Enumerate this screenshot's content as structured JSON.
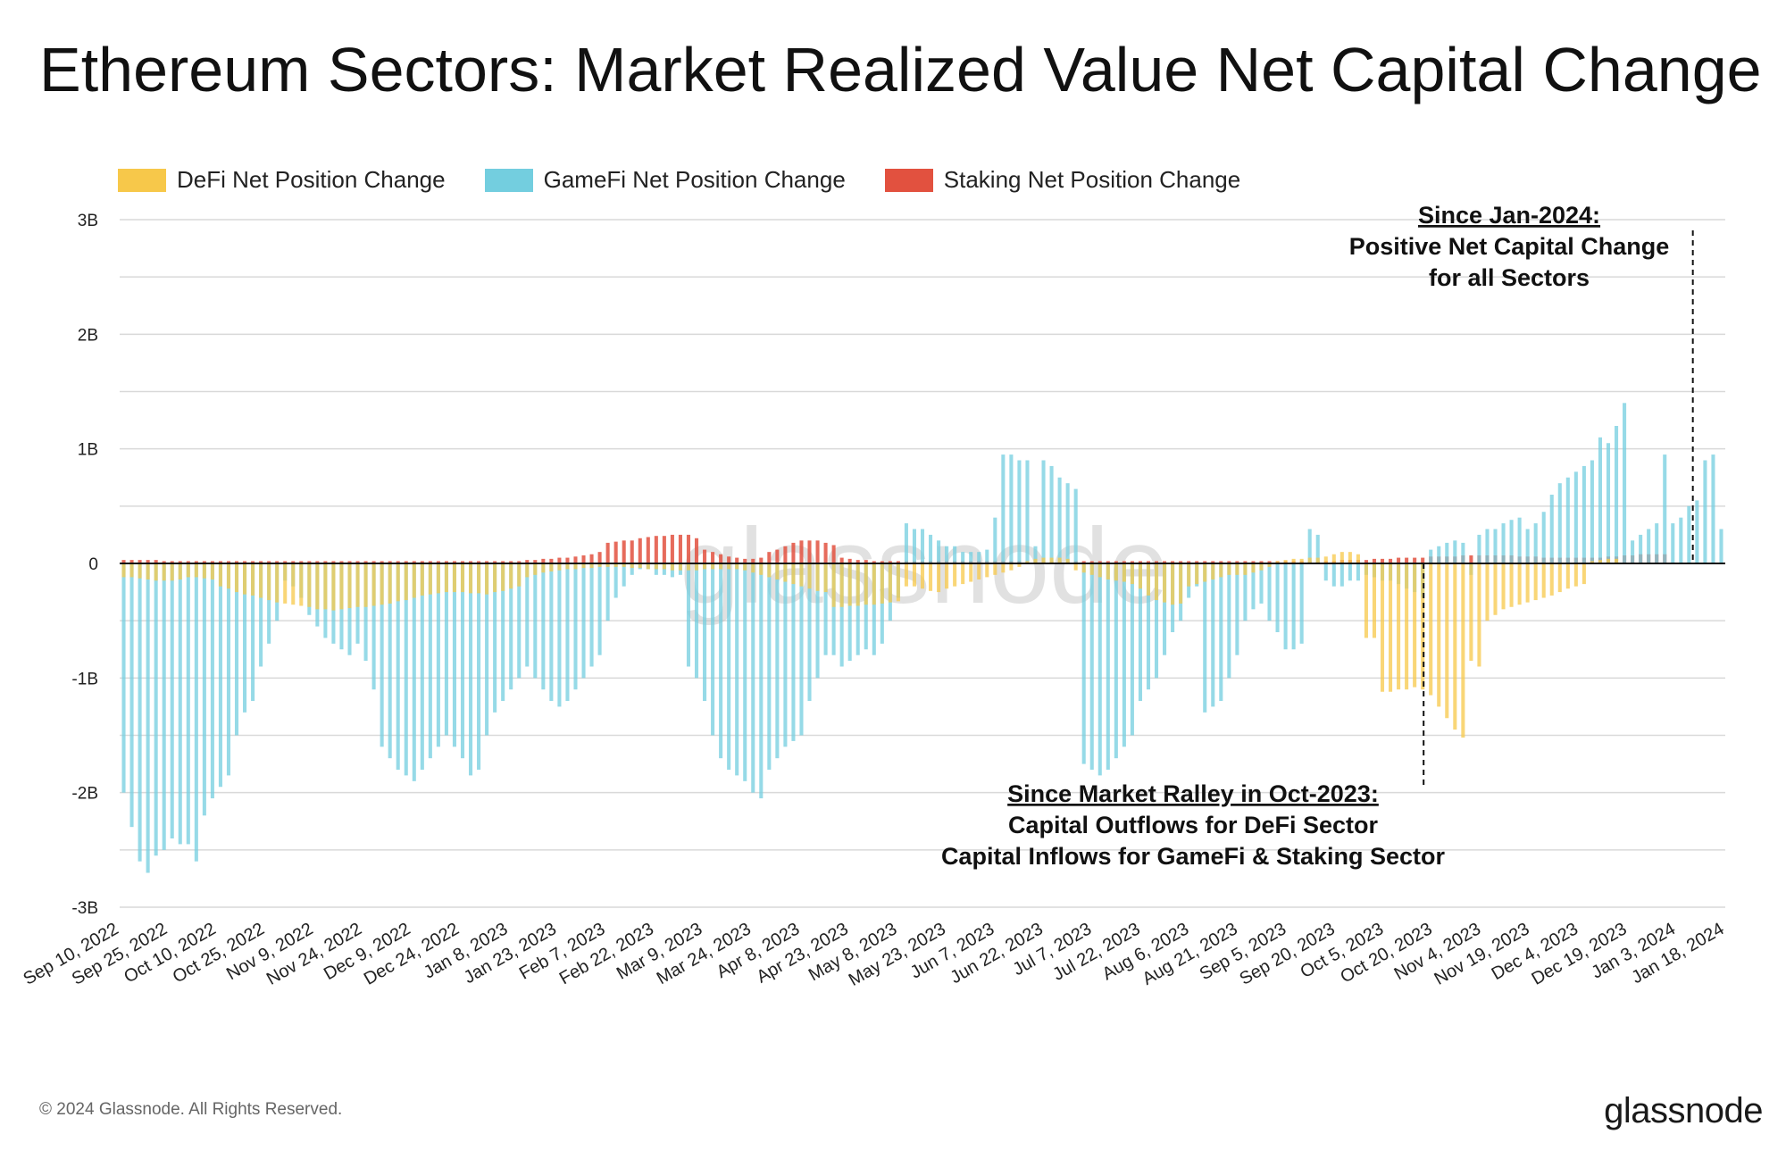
{
  "title": "Ethereum Sectors: Market Realized Value Net Capital Change",
  "legend": [
    {
      "label": "DeFi Net Position Change",
      "color": "#F7C84A"
    },
    {
      "label": "GameFi Net Position Change",
      "color": "#73CEDF"
    },
    {
      "label": "Staking Net Position Change",
      "color": "#E2513F"
    }
  ],
  "watermark": "glassnode",
  "footer": {
    "copyright": "© 2024 Glassnode. All Rights Reserved.",
    "logo": "glassnode"
  },
  "annotations": [
    {
      "lines": [
        "Since Jan-2024:",
        "Positive Net Capital Change",
        "for all Sectors"
      ],
      "anchor_date": "Jan 8, 2024"
    },
    {
      "lines": [
        "Since Market Ralley in Oct-2023:",
        "Capital Outflows for DeFi Sector",
        "Capital Inflows for GameFi & Staking Sector"
      ],
      "anchor_date": "Oct 17, 2023"
    }
  ],
  "chart_data": {
    "type": "bar",
    "title": "Ethereum Sectors: Market Realized Value Net Capital Change",
    "x_range": [
      "Sep 10, 2022",
      "Jan 18, 2024"
    ],
    "x_tick_labels": [
      "Sep 10, 2022",
      "Sep 25, 2022",
      "Oct 10, 2022",
      "Oct 25, 2022",
      "Nov 9, 2022",
      "Nov 24, 2022",
      "Dec 9, 2022",
      "Dec 24, 2022",
      "Jan 8, 2023",
      "Jan 23, 2023",
      "Feb 7, 2023",
      "Feb 22, 2023",
      "Mar 9, 2023",
      "Mar 24, 2023",
      "Apr 8, 2023",
      "Apr 23, 2023",
      "May 8, 2023",
      "May 23, 2023",
      "Jun 7, 2023",
      "Jun 22, 2023",
      "Jul 7, 2023",
      "Jul 22, 2023",
      "Aug 6, 2023",
      "Aug 21, 2023",
      "Sep 5, 2023",
      "Sep 20, 2023",
      "Oct 5, 2023",
      "Oct 20, 2023",
      "Nov 4, 2023",
      "Nov 19, 2023",
      "Dec 4, 2023",
      "Dec 19, 2023",
      "Jan 3, 2024",
      "Jan 18, 2024"
    ],
    "y_ticks": [
      3000000000,
      2000000000,
      1000000000,
      0,
      -1000000000,
      -2000000000,
      -3000000000
    ],
    "y_tick_labels": [
      "3B",
      "2B",
      "1B",
      "0",
      "-1B",
      "-2B",
      "-3B"
    ],
    "ylim": [
      -3000000000,
      3000000000
    ],
    "grid": true,
    "legend_position": "top-left",
    "series_sampling": "values sampled every 3 days from Sep 10, 2022",
    "series": [
      {
        "name": "DeFi Net Position Change",
        "color": "#F7C84A",
        "values": [
          -0.12,
          -0.12,
          -0.13,
          -0.14,
          -0.15,
          -0.15,
          -0.15,
          -0.14,
          -0.12,
          -0.12,
          -0.13,
          -0.14,
          -0.2,
          -0.22,
          -0.25,
          -0.27,
          -0.28,
          -0.3,
          -0.32,
          -0.34,
          -0.35,
          -0.36,
          -0.37,
          -0.38,
          -0.4,
          -0.4,
          -0.41,
          -0.4,
          -0.39,
          -0.38,
          -0.38,
          -0.37,
          -0.36,
          -0.35,
          -0.33,
          -0.32,
          -0.3,
          -0.28,
          -0.27,
          -0.26,
          -0.25,
          -0.25,
          -0.25,
          -0.26,
          -0.26,
          -0.27,
          -0.25,
          -0.24,
          -0.22,
          -0.2,
          -0.12,
          -0.1,
          -0.08,
          -0.07,
          -0.06,
          -0.05,
          -0.05,
          -0.04,
          -0.04,
          -0.03,
          -0.03,
          -0.03,
          -0.03,
          -0.04,
          -0.04,
          -0.05,
          -0.05,
          -0.05,
          -0.06,
          -0.06,
          -0.06,
          -0.06,
          -0.05,
          -0.05,
          -0.05,
          -0.05,
          -0.05,
          -0.06,
          -0.08,
          -0.1,
          -0.12,
          -0.14,
          -0.16,
          -0.18,
          -0.2,
          -0.22,
          -0.24,
          -0.25,
          -0.38,
          -0.38,
          -0.37,
          -0.37,
          -0.36,
          -0.36,
          -0.35,
          -0.34,
          -0.33,
          -0.2,
          -0.2,
          -0.22,
          -0.24,
          -0.25,
          -0.22,
          -0.2,
          -0.18,
          -0.16,
          -0.14,
          -0.12,
          -0.1,
          -0.08,
          -0.06,
          -0.03,
          0.02,
          0.04,
          0.05,
          0.05,
          0.05,
          0.04,
          -0.06,
          -0.08,
          -0.1,
          -0.12,
          -0.14,
          -0.15,
          -0.16,
          -0.18,
          -0.22,
          -0.28,
          -0.32,
          -0.34,
          -0.36,
          -0.35,
          -0.2,
          -0.18,
          -0.16,
          -0.14,
          -0.12,
          -0.1,
          -0.1,
          -0.1,
          -0.08,
          -0.06,
          -0.03,
          0.02,
          0.03,
          0.04,
          0.04,
          0.05,
          0.05,
          0.06,
          0.08,
          0.1,
          0.1,
          0.08,
          -0.65,
          -0.65,
          -1.12,
          -1.12,
          -1.1,
          -1.1,
          -1.08,
          -1.1,
          -1.15,
          -1.25,
          -1.35,
          -1.45,
          -1.52,
          -0.85,
          -0.9,
          -0.5,
          -0.45,
          -0.4,
          -0.38,
          -0.36,
          -0.34,
          -0.32,
          -0.3,
          -0.28,
          -0.25,
          -0.22,
          -0.2,
          -0.18,
          0.02,
          0.03,
          0.04,
          0.04
        ]
      },
      {
        "name": "GameFi Net Position Change",
        "color": "#73CEDF",
        "values": [
          -2.0,
          -2.3,
          -2.6,
          -2.7,
          -2.55,
          -2.5,
          -2.4,
          -2.45,
          -2.45,
          -2.6,
          -2.2,
          -2.05,
          -1.95,
          -1.85,
          -1.5,
          -1.3,
          -1.2,
          -0.9,
          -0.7,
          -0.5,
          -0.15,
          -0.2,
          -0.3,
          -0.45,
          -0.55,
          -0.65,
          -0.7,
          -0.75,
          -0.8,
          -0.7,
          -0.85,
          -1.1,
          -1.6,
          -1.7,
          -1.8,
          -1.85,
          -1.9,
          -1.8,
          -1.7,
          -1.6,
          -1.5,
          -1.6,
          -1.7,
          -1.85,
          -1.8,
          -1.5,
          -1.3,
          -1.2,
          -1.1,
          -1.0,
          -0.9,
          -1.0,
          -1.1,
          -1.2,
          -1.25,
          -1.2,
          -1.1,
          -1.0,
          -0.9,
          -0.8,
          -0.5,
          -0.3,
          -0.2,
          -0.1,
          -0.05,
          -0.05,
          -0.1,
          -0.1,
          -0.12,
          -0.1,
          -0.9,
          -1.0,
          -1.2,
          -1.5,
          -1.7,
          -1.8,
          -1.85,
          -1.9,
          -2.0,
          -2.05,
          -1.8,
          -1.7,
          -1.6,
          -1.55,
          -1.5,
          -1.2,
          -1.0,
          -0.8,
          -0.8,
          -0.9,
          -0.85,
          -0.8,
          -0.75,
          -0.8,
          -0.7,
          -0.5,
          -0.3,
          0.35,
          0.3,
          0.3,
          0.25,
          0.2,
          0.15,
          0.15,
          0.1,
          0.1,
          0.1,
          0.12,
          0.4,
          0.95,
          0.95,
          0.9,
          0.9,
          0.15,
          0.9,
          0.85,
          0.75,
          0.7,
          0.65,
          -1.75,
          -1.8,
          -1.85,
          -1.8,
          -1.7,
          -1.6,
          -1.5,
          -1.2,
          -1.1,
          -1.0,
          -0.8,
          -0.6,
          -0.5,
          -0.3,
          -0.2,
          -1.3,
          -1.25,
          -1.2,
          -1.0,
          -0.8,
          -0.5,
          -0.4,
          -0.35,
          -0.5,
          -0.6,
          -0.75,
          -0.75,
          -0.7,
          0.3,
          0.25,
          -0.15,
          -0.2,
          -0.2,
          -0.15,
          -0.15,
          -0.1,
          -0.12,
          -0.15,
          -0.15,
          -0.18,
          -0.22,
          -0.25,
          -0.3,
          0.12,
          0.15,
          0.18,
          0.2,
          0.18,
          -0.1,
          0.25,
          0.3,
          0.3,
          0.35,
          0.38,
          0.4,
          0.3,
          0.35,
          0.45,
          0.6,
          0.7,
          0.75,
          0.8,
          0.85,
          0.9,
          1.1,
          1.05,
          1.2,
          1.4,
          0.2,
          0.25,
          0.3,
          0.35,
          0.95,
          0.35,
          0.4,
          0.5,
          0.55,
          0.9,
          0.95,
          0.3
        ]
      },
      {
        "name": "Staking Net Position Change",
        "color": "#E2513F",
        "values": [
          0.03,
          0.03,
          0.03,
          0.03,
          0.03,
          0.02,
          0.02,
          0.02,
          0.02,
          0.02,
          0.02,
          0.02,
          0.02,
          0.02,
          0.02,
          0.02,
          0.02,
          0.02,
          0.02,
          0.02,
          0.02,
          0.02,
          0.02,
          0.02,
          0.02,
          0.02,
          0.02,
          0.02,
          0.02,
          0.02,
          0.02,
          0.02,
          0.02,
          0.02,
          0.02,
          0.02,
          0.02,
          0.02,
          0.02,
          0.02,
          0.02,
          0.02,
          0.02,
          0.02,
          0.02,
          0.02,
          0.02,
          0.02,
          0.02,
          0.02,
          0.03,
          0.03,
          0.04,
          0.04,
          0.05,
          0.05,
          0.06,
          0.07,
          0.08,
          0.1,
          0.18,
          0.19,
          0.2,
          0.2,
          0.22,
          0.23,
          0.24,
          0.24,
          0.25,
          0.25,
          0.25,
          0.22,
          0.12,
          0.1,
          0.08,
          0.06,
          0.05,
          0.04,
          0.04,
          0.05,
          0.1,
          0.12,
          0.15,
          0.18,
          0.2,
          0.2,
          0.2,
          0.18,
          0.16,
          0.05,
          0.04,
          0.03,
          0.03,
          0.02,
          0.02,
          0.02,
          0.02,
          0.02,
          0.02,
          0.02,
          0.02,
          0.02,
          0.02,
          0.02,
          0.02,
          0.02,
          0.02,
          0.02,
          0.02,
          0.02,
          0.02,
          0.02,
          0.02,
          0.02,
          0.02,
          0.02,
          0.02,
          0.02,
          0.02,
          0.02,
          0.02,
          0.02,
          0.02,
          0.02,
          0.02,
          0.02,
          0.02,
          0.02,
          0.02,
          0.02,
          0.02,
          0.02,
          0.02,
          0.02,
          0.02,
          0.02,
          0.02,
          0.02,
          0.02,
          0.02,
          0.02,
          0.02,
          0.02,
          0.02,
          0.02,
          0.02,
          0.02,
          0.02,
          0.02,
          0.02,
          0.02,
          0.03,
          0.03,
          0.03,
          0.03,
          0.04,
          0.04,
          0.04,
          0.05,
          0.05,
          0.05,
          0.05,
          0.06,
          0.06,
          0.06,
          0.06,
          0.07,
          0.07,
          0.07,
          0.07,
          0.07,
          0.07,
          0.07,
          0.06,
          0.06,
          0.06,
          0.05,
          0.05,
          0.05,
          0.05,
          0.05,
          0.05,
          0.05,
          0.05,
          0.06,
          0.06,
          0.07,
          0.07,
          0.08,
          0.08,
          0.08,
          0.08
        ]
      }
    ]
  }
}
